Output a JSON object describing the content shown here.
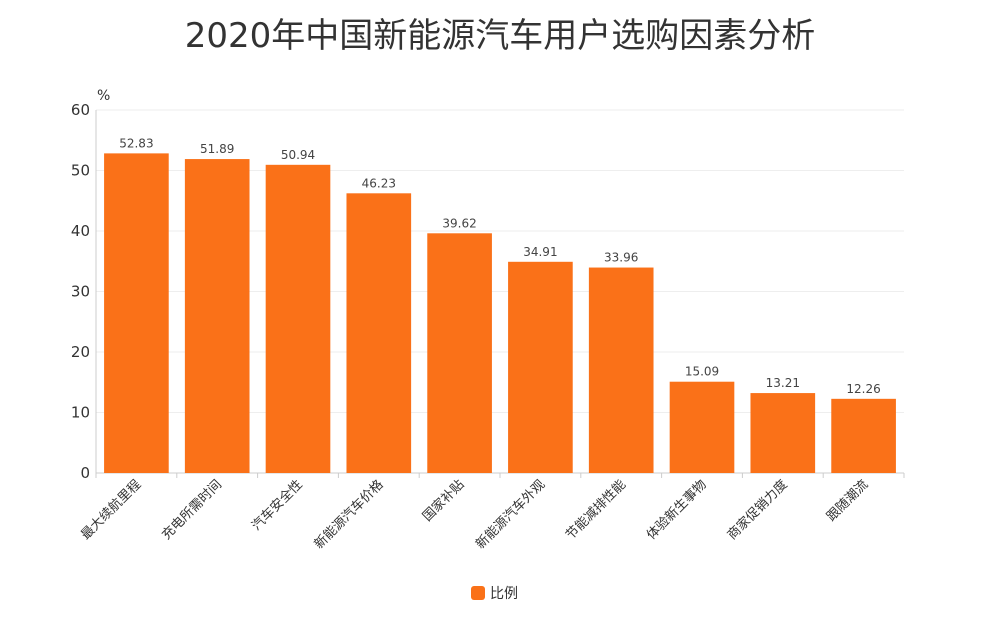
{
  "chart_data": {
    "type": "bar",
    "title": "2020年中国新能源汽车用户选购因素分析",
    "y_unit": "%",
    "categories": [
      "最大续航里程",
      "充电所需时间",
      "汽车安全性",
      "新能源汽车价格",
      "国家补贴",
      "新能源汽车外观",
      "节能减排性能",
      "体验新生事物",
      "商家促销力度",
      "跟随潮流"
    ],
    "series": [
      {
        "name": "比例",
        "values": [
          52.83,
          51.89,
          50.94,
          46.23,
          39.62,
          34.91,
          33.96,
          15.09,
          13.21,
          12.26
        ]
      }
    ],
    "ylim": [
      0,
      60
    ],
    "yticks": [
      0,
      10,
      20,
      30,
      40,
      50,
      60
    ],
    "grid": true,
    "legend_position": "bottom-center",
    "colors": {
      "bar": "#FA7118",
      "grid": "#EEEEEE",
      "axis": "#CCCCCC"
    }
  }
}
